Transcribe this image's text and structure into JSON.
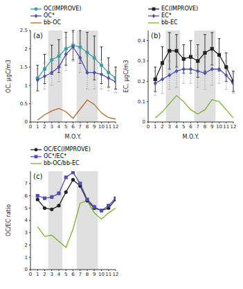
{
  "chart_data": [
    {
      "type": "line",
      "title": "(a)",
      "x_label": "M.O.Y.",
      "y_label": "OC, μgC/m3",
      "x": [
        1,
        2,
        3,
        4,
        5,
        6,
        7,
        8,
        9,
        10,
        11,
        12
      ],
      "xlim": [
        0,
        12
      ],
      "xticks": [
        0,
        1,
        2,
        3,
        4,
        5,
        6,
        7,
        8,
        9,
        10,
        11,
        12
      ],
      "ylim": [
        0,
        2.5
      ],
      "yticks": [
        0,
        0.5,
        1,
        1.5,
        2,
        2.5
      ],
      "legend": "upper left",
      "shaded": [
        [
          2.5,
          4.5
        ],
        [
          6.5,
          9.5
        ]
      ],
      "series": [
        {
          "name": "OC(IMPROVE)",
          "color": "#3aa0a0",
          "marker": "circle",
          "values": [
            1.2,
            1.45,
            1.7,
            1.8,
            2.0,
            2.1,
            2.05,
            1.9,
            1.75,
            1.55,
            1.35,
            1.2
          ],
          "error": [
            0.35,
            0.4,
            0.4,
            0.45,
            0.45,
            0.4,
            0.45,
            0.55,
            0.6,
            0.5,
            0.4,
            0.3
          ]
        },
        {
          "name": "OC*",
          "color": "#5050b0",
          "marker": "diamond",
          "values": [
            1.15,
            1.25,
            1.35,
            1.5,
            1.85,
            2.05,
            1.75,
            1.35,
            1.35,
            1.3,
            1.2,
            1.1
          ],
          "error": [
            0.3,
            0.35,
            0.35,
            0.4,
            0.45,
            0.4,
            0.4,
            0.45,
            0.45,
            0.4,
            0.35,
            0.3
          ]
        },
        {
          "name": "bb-OC",
          "color": "#b06a30",
          "marker": "none",
          "values": [
            0.05,
            0.2,
            0.3,
            0.37,
            0.28,
            0.1,
            0.35,
            0.6,
            0.48,
            0.25,
            0.12,
            0.08
          ]
        }
      ]
    },
    {
      "type": "line",
      "title": "(b)",
      "x_label": "M.O.Y.",
      "y_label": "EC, μgC/m3",
      "x": [
        1,
        2,
        3,
        4,
        5,
        6,
        7,
        8,
        9,
        10,
        11,
        12
      ],
      "xlim": [
        0,
        12
      ],
      "xticks": [
        0,
        1,
        2,
        3,
        4,
        5,
        6,
        7,
        8,
        9,
        10,
        11,
        12
      ],
      "ylim": [
        0,
        0.45
      ],
      "yticks": [
        0,
        0.1,
        0.2,
        0.3,
        0.4
      ],
      "legend": "upper left",
      "shaded": [
        [
          2.5,
          4.5
        ],
        [
          6.5,
          9.5
        ]
      ],
      "series": [
        {
          "name": "EC(IMPROVE)",
          "color": "#222222",
          "marker": "square",
          "values": [
            0.21,
            0.29,
            0.35,
            0.35,
            0.31,
            0.32,
            0.3,
            0.34,
            0.36,
            0.33,
            0.27,
            0.2
          ],
          "error": [
            0.06,
            0.08,
            0.09,
            0.08,
            0.07,
            0.08,
            0.08,
            0.09,
            0.08,
            0.08,
            0.07,
            0.05
          ]
        },
        {
          "name": "EC*",
          "color": "#5050b0",
          "marker": "diamond",
          "values": [
            0.19,
            0.21,
            0.23,
            0.25,
            0.26,
            0.26,
            0.25,
            0.24,
            0.26,
            0.26,
            0.23,
            0.19
          ],
          "error": [
            0.06,
            0.07,
            0.07,
            0.08,
            0.07,
            0.07,
            0.08,
            0.08,
            0.08,
            0.07,
            0.07,
            0.05
          ]
        },
        {
          "name": "bb-EC",
          "color": "#7ab030",
          "marker": "none",
          "values": [
            0.02,
            0.05,
            0.09,
            0.13,
            0.1,
            0.06,
            0.04,
            0.06,
            0.11,
            0.1,
            0.06,
            0.02
          ]
        }
      ]
    },
    {
      "type": "line",
      "title": "(c)",
      "x_label": "",
      "y_label": "OC/EC ratio",
      "x": [
        1,
        2,
        3,
        4,
        5,
        6,
        7,
        8,
        9,
        10,
        11,
        12
      ],
      "xlim": [
        0,
        12
      ],
      "xticks": [
        0,
        1,
        2,
        3,
        4,
        5,
        6,
        7,
        8,
        9,
        10,
        11,
        12
      ],
      "ylim": [
        0,
        8
      ],
      "yticks": [
        0,
        1,
        2,
        3,
        4,
        5,
        6,
        7
      ],
      "legend": "upper left",
      "shaded": [
        [
          2.5,
          4.5
        ],
        [
          6.5,
          9.5
        ]
      ],
      "series": [
        {
          "name": "OC/EC(IMPROVE)",
          "color": "#222222",
          "marker": "circle",
          "values": [
            5.7,
            5.0,
            4.9,
            5.2,
            6.3,
            7.3,
            6.8,
            5.6,
            5.0,
            4.8,
            5.0,
            5.7
          ]
        },
        {
          "name": "OC*/EC*",
          "color": "#5050b0",
          "marker": "square",
          "values": [
            6.0,
            5.8,
            5.9,
            6.2,
            7.5,
            7.9,
            7.0,
            5.7,
            5.1,
            4.8,
            5.2,
            5.8
          ]
        },
        {
          "name": "bb-OC/bb-EC",
          "color": "#7ab030",
          "marker": "none",
          "values": [
            3.5,
            2.7,
            2.8,
            2.3,
            1.8,
            3.3,
            5.4,
            5.6,
            4.6,
            4.1,
            4.6,
            5.0
          ]
        }
      ]
    }
  ]
}
